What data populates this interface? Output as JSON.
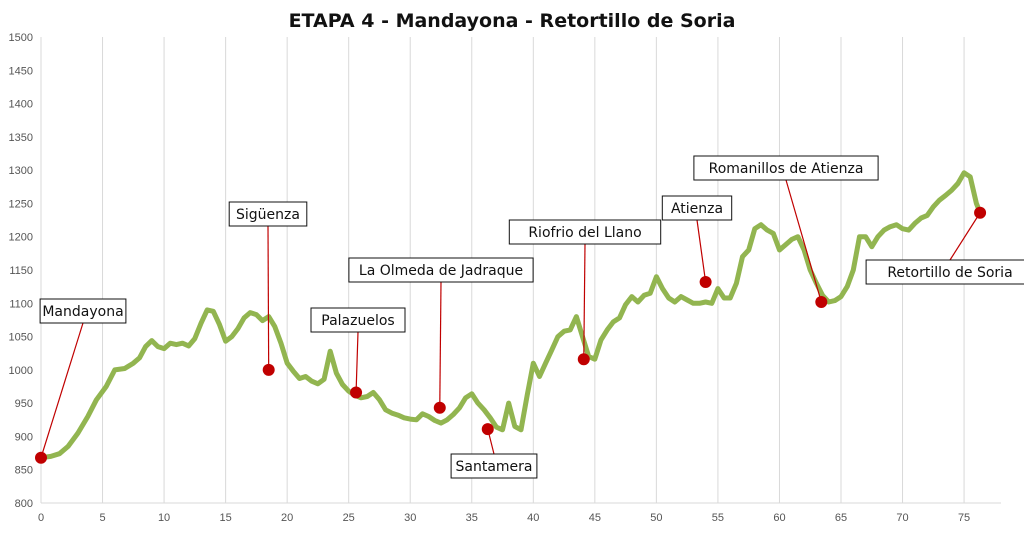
{
  "chart_data": {
    "type": "line",
    "title": "ETAPA 4 - Mandayona - Retortillo de Soria",
    "xlabel": "",
    "ylabel": "",
    "xlim": [
      0,
      78
    ],
    "ylim": [
      800,
      1500
    ],
    "x_ticks": [
      0,
      5,
      10,
      15,
      20,
      25,
      30,
      35,
      40,
      45,
      50,
      55,
      60,
      65,
      70,
      75
    ],
    "y_ticks": [
      800,
      850,
      900,
      950,
      1000,
      1050,
      1100,
      1150,
      1200,
      1250,
      1300,
      1350,
      1400,
      1450,
      1500
    ],
    "grid": {
      "vertical": true,
      "horizontal": false
    },
    "line_color": "#92b550",
    "marker_color": "#c00000",
    "series": [
      {
        "points": [
          [
            0,
            868
          ],
          [
            0.8,
            870
          ],
          [
            1.5,
            874
          ],
          [
            2.2,
            885
          ],
          [
            3,
            905
          ],
          [
            3.8,
            930
          ],
          [
            4.5,
            955
          ],
          [
            5.3,
            975
          ],
          [
            6,
            1000
          ],
          [
            6.8,
            1002
          ],
          [
            7.5,
            1010
          ],
          [
            8,
            1018
          ],
          [
            8.5,
            1035
          ],
          [
            9,
            1044
          ],
          [
            9.5,
            1035
          ],
          [
            10,
            1032
          ],
          [
            10.5,
            1040
          ],
          [
            11,
            1038
          ],
          [
            11.5,
            1040
          ],
          [
            12,
            1036
          ],
          [
            12.5,
            1047
          ],
          [
            13,
            1070
          ],
          [
            13.5,
            1090
          ],
          [
            14,
            1088
          ],
          [
            14.5,
            1068
          ],
          [
            15,
            1043
          ],
          [
            15.5,
            1050
          ],
          [
            16,
            1062
          ],
          [
            16.5,
            1078
          ],
          [
            17,
            1086
          ],
          [
            17.5,
            1083
          ],
          [
            18,
            1074
          ],
          [
            18.5,
            1080
          ],
          [
            19,
            1065
          ],
          [
            19.5,
            1040
          ],
          [
            20,
            1010
          ],
          [
            20.5,
            998
          ],
          [
            21,
            987
          ],
          [
            21.5,
            990
          ],
          [
            22,
            983
          ],
          [
            22.5,
            979
          ],
          [
            23,
            986
          ],
          [
            23.5,
            1028
          ],
          [
            24,
            995
          ],
          [
            24.5,
            978
          ],
          [
            25,
            968
          ],
          [
            25.5,
            962
          ],
          [
            26,
            958
          ],
          [
            26.5,
            960
          ],
          [
            27,
            966
          ],
          [
            27.5,
            955
          ],
          [
            28,
            940
          ],
          [
            28.5,
            935
          ],
          [
            29,
            932
          ],
          [
            29.5,
            928
          ],
          [
            30,
            926
          ],
          [
            30.5,
            925
          ],
          [
            31,
            934
          ],
          [
            31.5,
            930
          ],
          [
            32,
            924
          ],
          [
            32.5,
            920
          ],
          [
            33,
            925
          ],
          [
            33.5,
            933
          ],
          [
            34,
            943
          ],
          [
            34.5,
            958
          ],
          [
            35,
            964
          ],
          [
            35.5,
            950
          ],
          [
            36,
            940
          ],
          [
            36.5,
            928
          ],
          [
            37,
            914
          ],
          [
            37.5,
            910
          ],
          [
            38,
            950
          ],
          [
            38.5,
            915
          ],
          [
            39,
            910
          ],
          [
            39.5,
            962
          ],
          [
            40,
            1010
          ],
          [
            40.5,
            990
          ],
          [
            41,
            1010
          ],
          [
            41.5,
            1030
          ],
          [
            42,
            1050
          ],
          [
            42.5,
            1058
          ],
          [
            43,
            1060
          ],
          [
            43.5,
            1080
          ],
          [
            44,
            1050
          ],
          [
            44.5,
            1020
          ],
          [
            45,
            1016
          ],
          [
            45.5,
            1045
          ],
          [
            46,
            1060
          ],
          [
            46.5,
            1072
          ],
          [
            47,
            1078
          ],
          [
            47.5,
            1098
          ],
          [
            48,
            1110
          ],
          [
            48.5,
            1102
          ],
          [
            49,
            1112
          ],
          [
            49.5,
            1115
          ],
          [
            50,
            1140
          ],
          [
            50.5,
            1122
          ],
          [
            51,
            1108
          ],
          [
            51.5,
            1102
          ],
          [
            52,
            1110
          ],
          [
            52.5,
            1105
          ],
          [
            53,
            1100
          ],
          [
            53.5,
            1100
          ],
          [
            54,
            1102
          ],
          [
            54.5,
            1100
          ],
          [
            55,
            1122
          ],
          [
            55.5,
            1108
          ],
          [
            56,
            1108
          ],
          [
            56.5,
            1130
          ],
          [
            57,
            1170
          ],
          [
            57.5,
            1180
          ],
          [
            58,
            1212
          ],
          [
            58.5,
            1218
          ],
          [
            59,
            1210
          ],
          [
            59.5,
            1205
          ],
          [
            60,
            1180
          ],
          [
            60.5,
            1188
          ],
          [
            61,
            1196
          ],
          [
            61.5,
            1200
          ],
          [
            62,
            1180
          ],
          [
            62.5,
            1150
          ],
          [
            63,
            1130
          ],
          [
            63.5,
            1112
          ],
          [
            64,
            1102
          ],
          [
            64.5,
            1104
          ],
          [
            65,
            1110
          ],
          [
            65.5,
            1125
          ],
          [
            66,
            1150
          ],
          [
            66.5,
            1200
          ],
          [
            67,
            1200
          ],
          [
            67.5,
            1185
          ],
          [
            68,
            1200
          ],
          [
            68.5,
            1210
          ],
          [
            69,
            1215
          ],
          [
            69.5,
            1218
          ],
          [
            70,
            1212
          ],
          [
            70.5,
            1210
          ],
          [
            71,
            1220
          ],
          [
            71.5,
            1228
          ],
          [
            72,
            1232
          ],
          [
            72.5,
            1245
          ],
          [
            73,
            1255
          ],
          [
            73.5,
            1262
          ],
          [
            74,
            1270
          ],
          [
            74.5,
            1280
          ],
          [
            75,
            1296
          ],
          [
            75.5,
            1290
          ],
          [
            76,
            1250
          ],
          [
            76.3,
            1236
          ]
        ]
      }
    ],
    "annotations": [
      {
        "label": "Mandayona",
        "x": 0,
        "y": 868
      },
      {
        "label": "Sigüenza",
        "x": 18.5,
        "y": 1000
      },
      {
        "label": "Palazuelos",
        "x": 25.6,
        "y": 966
      },
      {
        "label": "La Olmeda de Jadraque",
        "x": 32.4,
        "y": 943
      },
      {
        "label": "Santamera",
        "x": 36.3,
        "y": 911
      },
      {
        "label": "Riofrio del Llano",
        "x": 44.1,
        "y": 1016
      },
      {
        "label": "Atienza",
        "x": 54,
        "y": 1132
      },
      {
        "label": "Romanillos de Atienza",
        "x": 63.4,
        "y": 1102
      },
      {
        "label": "Retortillo de Soria",
        "x": 76.3,
        "y": 1236
      }
    ]
  }
}
